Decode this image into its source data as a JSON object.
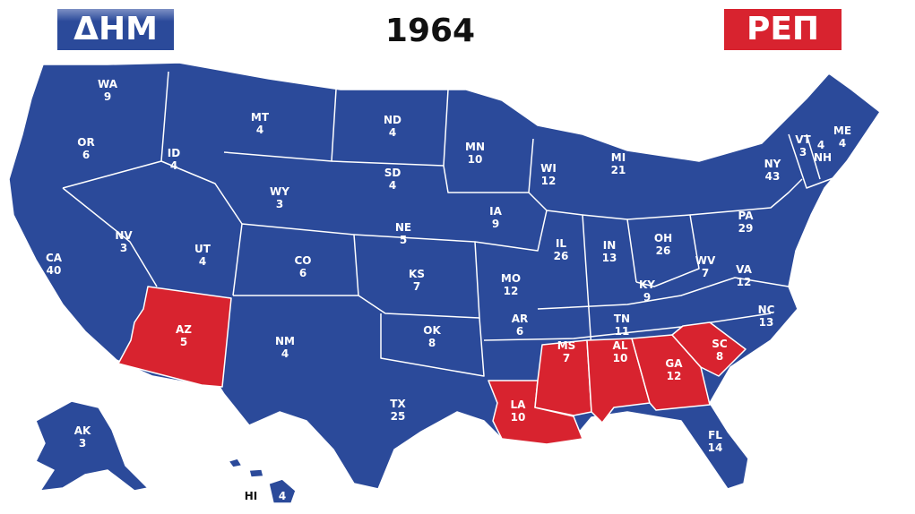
{
  "header": {
    "dem_label": "ΔΗΜ",
    "rep_label": "ΡΕΠ",
    "year": "1964"
  },
  "colors": {
    "dem": "#2b4a9a",
    "rep": "#d8232f"
  },
  "states": [
    {
      "abbr": "WA",
      "ev": "9",
      "party": "dem"
    },
    {
      "abbr": "OR",
      "ev": "6",
      "party": "dem"
    },
    {
      "abbr": "CA",
      "ev": "40",
      "party": "dem"
    },
    {
      "abbr": "ID",
      "ev": "4",
      "party": "dem"
    },
    {
      "abbr": "NV",
      "ev": "3",
      "party": "dem"
    },
    {
      "abbr": "MT",
      "ev": "4",
      "party": "dem"
    },
    {
      "abbr": "WY",
      "ev": "3",
      "party": "dem"
    },
    {
      "abbr": "UT",
      "ev": "4",
      "party": "dem"
    },
    {
      "abbr": "AZ",
      "ev": "5",
      "party": "rep"
    },
    {
      "abbr": "CO",
      "ev": "6",
      "party": "dem"
    },
    {
      "abbr": "NM",
      "ev": "4",
      "party": "dem"
    },
    {
      "abbr": "ND",
      "ev": "4",
      "party": "dem"
    },
    {
      "abbr": "SD",
      "ev": "4",
      "party": "dem"
    },
    {
      "abbr": "NE",
      "ev": "5",
      "party": "dem"
    },
    {
      "abbr": "KS",
      "ev": "7",
      "party": "dem"
    },
    {
      "abbr": "OK",
      "ev": "8",
      "party": "dem"
    },
    {
      "abbr": "TX",
      "ev": "25",
      "party": "dem"
    },
    {
      "abbr": "MN",
      "ev": "10",
      "party": "dem"
    },
    {
      "abbr": "IA",
      "ev": "9",
      "party": "dem"
    },
    {
      "abbr": "MO",
      "ev": "12",
      "party": "dem"
    },
    {
      "abbr": "AR",
      "ev": "6",
      "party": "dem"
    },
    {
      "abbr": "LA",
      "ev": "10",
      "party": "rep"
    },
    {
      "abbr": "WI",
      "ev": "12",
      "party": "dem"
    },
    {
      "abbr": "IL",
      "ev": "26",
      "party": "dem"
    },
    {
      "abbr": "MI",
      "ev": "21",
      "party": "dem"
    },
    {
      "abbr": "IN",
      "ev": "13",
      "party": "dem"
    },
    {
      "abbr": "OH",
      "ev": "26",
      "party": "dem"
    },
    {
      "abbr": "KY",
      "ev": "9",
      "party": "dem"
    },
    {
      "abbr": "TN",
      "ev": "11",
      "party": "dem"
    },
    {
      "abbr": "MS",
      "ev": "7",
      "party": "rep"
    },
    {
      "abbr": "AL",
      "ev": "10",
      "party": "rep"
    },
    {
      "abbr": "GA",
      "ev": "12",
      "party": "rep"
    },
    {
      "abbr": "FL",
      "ev": "14",
      "party": "dem"
    },
    {
      "abbr": "SC",
      "ev": "8",
      "party": "rep"
    },
    {
      "abbr": "NC",
      "ev": "13",
      "party": "dem"
    },
    {
      "abbr": "VA",
      "ev": "12",
      "party": "dem"
    },
    {
      "abbr": "WV",
      "ev": "7",
      "party": "dem"
    },
    {
      "abbr": "PA",
      "ev": "29",
      "party": "dem"
    },
    {
      "abbr": "NY",
      "ev": "43",
      "party": "dem"
    },
    {
      "abbr": "VT",
      "ev": "3",
      "party": "dem"
    },
    {
      "abbr": "NH",
      "ev": "4",
      "party": "dem"
    },
    {
      "abbr": "ME",
      "ev": "4",
      "party": "dem"
    },
    {
      "abbr": "AK",
      "ev": "3",
      "party": "dem"
    },
    {
      "abbr": "HI",
      "ev": "4",
      "party": "dem"
    }
  ]
}
